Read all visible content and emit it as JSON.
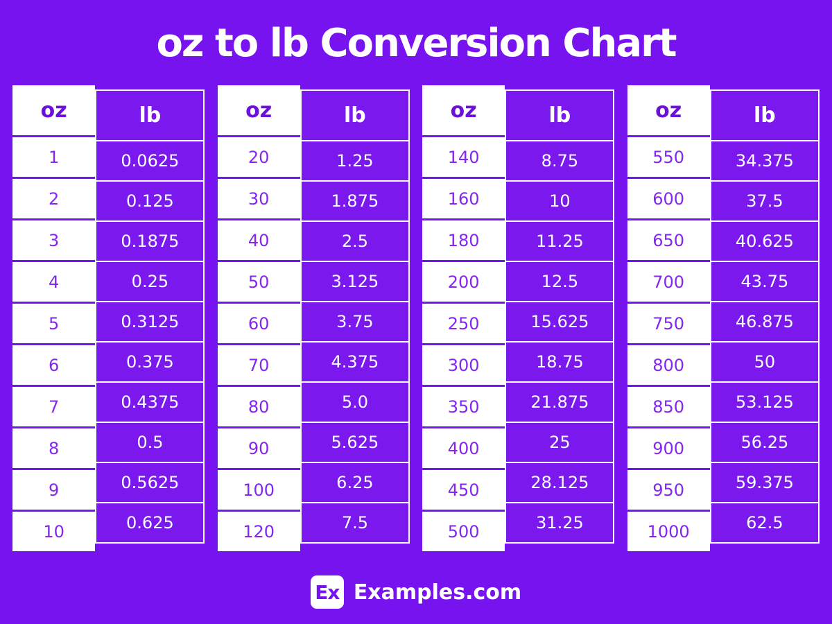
{
  "title": "oz to lb Conversion Chart",
  "colors": {
    "background": "#7713EE",
    "cell_purple": "#7A18EE",
    "oz_header_text": "#6C10DC",
    "oz_value_text": "#8326F0",
    "white": "#FFFFFF"
  },
  "chart_data": {
    "type": "table",
    "title": "oz to lb Conversion Chart",
    "columns": [
      "oz",
      "lb"
    ],
    "tables": [
      {
        "rows": [
          [
            "1",
            "0.0625"
          ],
          [
            "2",
            "0.125"
          ],
          [
            "3",
            "0.1875"
          ],
          [
            "4",
            "0.25"
          ],
          [
            "5",
            "0.3125"
          ],
          [
            "6",
            "0.375"
          ],
          [
            "7",
            "0.4375"
          ],
          [
            "8",
            "0.5"
          ],
          [
            "9",
            "0.5625"
          ],
          [
            "10",
            "0.625"
          ]
        ]
      },
      {
        "rows": [
          [
            "20",
            "1.25"
          ],
          [
            "30",
            "1.875"
          ],
          [
            "40",
            "2.5"
          ],
          [
            "50",
            "3.125"
          ],
          [
            "60",
            "3.75"
          ],
          [
            "70",
            "4.375"
          ],
          [
            "80",
            "5.0"
          ],
          [
            "90",
            "5.625"
          ],
          [
            "100",
            "6.25"
          ],
          [
            "120",
            "7.5"
          ]
        ]
      },
      {
        "rows": [
          [
            "140",
            "8.75"
          ],
          [
            "160",
            "10"
          ],
          [
            "180",
            "11.25"
          ],
          [
            "200",
            "12.5"
          ],
          [
            "250",
            "15.625"
          ],
          [
            "300",
            "18.75"
          ],
          [
            "350",
            "21.875"
          ],
          [
            "400",
            "25"
          ],
          [
            "450",
            "28.125"
          ],
          [
            "500",
            "31.25"
          ]
        ]
      },
      {
        "rows": [
          [
            "550",
            "34.375"
          ],
          [
            "600",
            "37.5"
          ],
          [
            "650",
            "40.625"
          ],
          [
            "700",
            "43.75"
          ],
          [
            "750",
            "46.875"
          ],
          [
            "800",
            "50"
          ],
          [
            "850",
            "53.125"
          ],
          [
            "900",
            "56.25"
          ],
          [
            "950",
            "59.375"
          ],
          [
            "1000",
            "62.5"
          ]
        ]
      }
    ]
  },
  "footer": {
    "logo_text": "Ex",
    "brand": "Examples.com"
  }
}
